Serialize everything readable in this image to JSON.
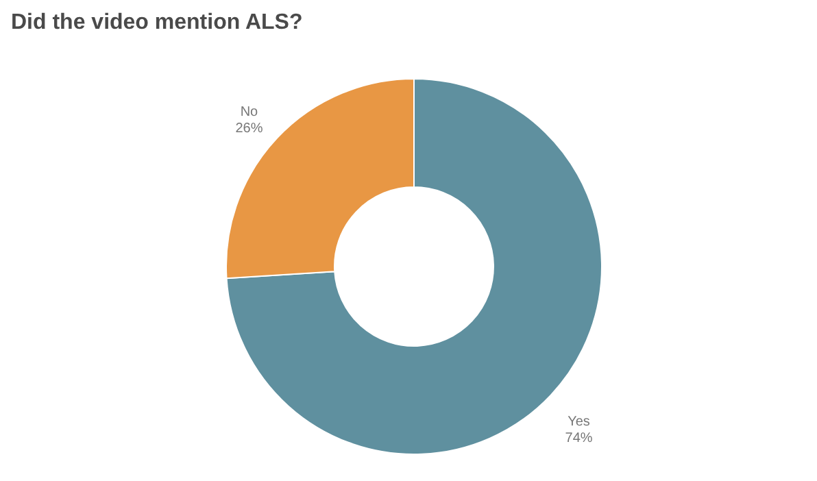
{
  "chart_data": {
    "type": "donut",
    "title": "Did the video mention ALS?",
    "categories": [
      "Yes",
      "No"
    ],
    "values": [
      74,
      26
    ],
    "colors": [
      "#5f909f",
      "#e89744"
    ],
    "value_labels": [
      "74%",
      "26%"
    ]
  }
}
